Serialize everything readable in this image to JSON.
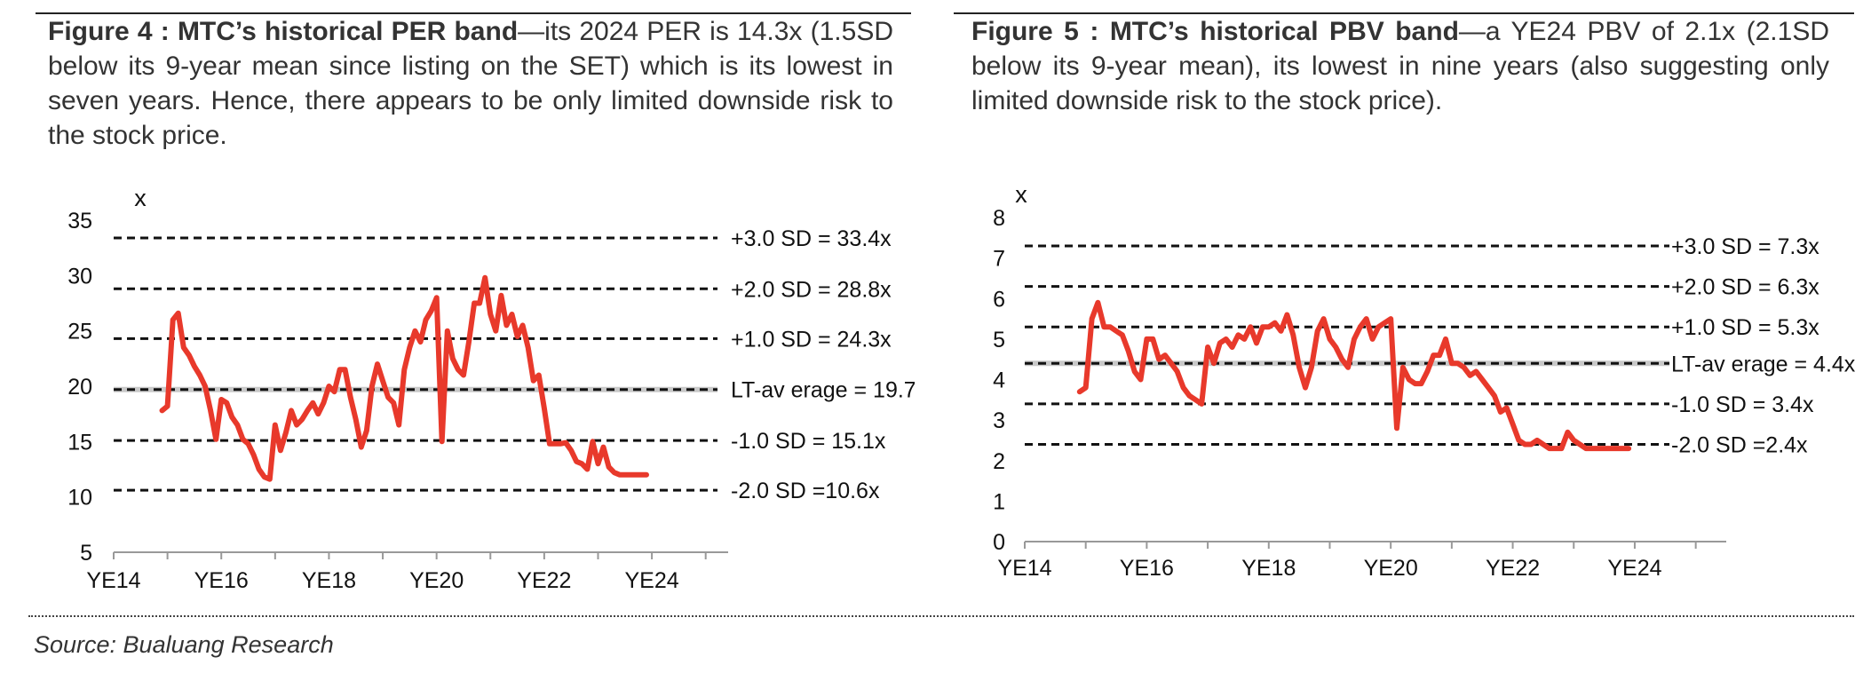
{
  "figures": [
    {
      "caption_title": "Figure 4 : MTC’s historical PER band",
      "caption_text": "—its 2024 PER is 14.3x (1.5SD below its 9-year mean since listing on the SET) which is its lowest in seven years. Hence, there appears to be only limited downside risk to the stock price."
    },
    {
      "caption_title": "Figure 5 : MTC’s historical PBV band",
      "caption_text": "—a YE24 PBV of 2.1x (2.1SD below its 9-year mean), its lowest in nine years (also suggesting only limited downside risk to the stock price)."
    }
  ],
  "source": "Source: Bualuang Research",
  "colors": {
    "series": "#e8392b",
    "bands": "#111111",
    "lt_average": "#c8c8c8",
    "text": "#333333"
  },
  "chart_data": [
    {
      "type": "line",
      "title": "",
      "ylabel": "x",
      "ylim": [
        5,
        35
      ],
      "yticks": [
        5,
        10,
        15,
        20,
        25,
        30,
        35
      ],
      "xlim": [
        2014,
        2025.5
      ],
      "xticks": [
        {
          "value": 2014,
          "label": "YE14"
        },
        {
          "value": 2016,
          "label": "YE16"
        },
        {
          "value": 2018,
          "label": "YE18"
        },
        {
          "value": 2020,
          "label": "YE20"
        },
        {
          "value": 2022,
          "label": "YE22"
        },
        {
          "value": 2024,
          "label": "YE24"
        }
      ],
      "grid": false,
      "bands": [
        {
          "label": "+3.0 SD = 33.4x",
          "value": 33.4
        },
        {
          "label": "+2.0 SD = 28.8x",
          "value": 28.8
        },
        {
          "label": "+1.0 SD = 24.3x",
          "value": 24.3
        },
        {
          "label": "LT-av erage = 19.7x",
          "value": 19.7,
          "is_average": true
        },
        {
          "label": "-1.0 SD = 15.1x",
          "value": 15.1
        },
        {
          "label": "-2.0 SD =10.6x",
          "value": 10.6
        }
      ],
      "series": [
        {
          "x": [
            2014.9,
            2015.0,
            2015.1,
            2015.2,
            2015.3,
            2015.4,
            2015.5,
            2015.6,
            2015.7,
            2015.8,
            2015.9,
            2016.0,
            2016.1,
            2016.2,
            2016.3,
            2016.4,
            2016.5,
            2016.6,
            2016.7,
            2016.8,
            2016.9,
            2017.0,
            2017.1,
            2017.2,
            2017.3,
            2017.4,
            2017.5,
            2017.6,
            2017.7,
            2017.8,
            2017.9,
            2018.0,
            2018.1,
            2018.2,
            2018.3,
            2018.4,
            2018.5,
            2018.6,
            2018.7,
            2018.8,
            2018.9,
            2019.0,
            2019.1,
            2019.2,
            2019.3,
            2019.4,
            2019.5,
            2019.6,
            2019.7,
            2019.8,
            2019.9,
            2020.0,
            2020.1,
            2020.2,
            2020.3,
            2020.4,
            2020.5,
            2020.6,
            2020.7,
            2020.8,
            2020.9,
            2021.0,
            2021.1,
            2021.2,
            2021.3,
            2021.4,
            2021.5,
            2021.6,
            2021.7,
            2021.8,
            2021.9,
            2022.0,
            2022.1,
            2022.2,
            2022.3,
            2022.4,
            2022.5,
            2022.6,
            2022.7,
            2022.8,
            2022.9,
            2023.0,
            2023.1,
            2023.2,
            2023.3,
            2023.4,
            2023.5,
            2023.6,
            2023.7,
            2023.8,
            2023.9
          ],
          "values": [
            17.8,
            18.2,
            26.0,
            26.6,
            23.5,
            22.8,
            21.8,
            21.0,
            20.0,
            17.8,
            15.2,
            18.8,
            18.5,
            17.2,
            16.5,
            15.2,
            14.8,
            13.8,
            12.5,
            11.8,
            11.6,
            16.5,
            14.2,
            15.8,
            17.8,
            16.5,
            17.0,
            17.8,
            18.5,
            17.5,
            18.5,
            20.0,
            19.5,
            21.5,
            21.5,
            19.0,
            17.0,
            14.5,
            16.0,
            20.0,
            22.0,
            20.5,
            19.0,
            18.5,
            16.5,
            21.5,
            23.5,
            25.0,
            24.0,
            26.0,
            26.8,
            28.0,
            15.0,
            25.0,
            22.5,
            21.5,
            21.0,
            24.0,
            27.5,
            27.5,
            29.8,
            26.5,
            25.0,
            28.2,
            25.5,
            26.5,
            24.5,
            25.5,
            23.5,
            20.5,
            21.0,
            18.0,
            14.8,
            14.8,
            14.8,
            14.9,
            14.2,
            13.2,
            13.0,
            12.5,
            15.0,
            13.0,
            14.5,
            12.7,
            12.2,
            12.0,
            12.0,
            12.0,
            12.0,
            12.0,
            12.0
          ]
        }
      ]
    },
    {
      "type": "line",
      "title": "",
      "ylabel": "x",
      "ylim": [
        0,
        8
      ],
      "yticks": [
        0,
        1,
        2,
        3,
        4,
        5,
        6,
        7,
        8
      ],
      "xlim": [
        2014,
        2025.5
      ],
      "xticks": [
        {
          "value": 2014,
          "label": "YE14"
        },
        {
          "value": 2016,
          "label": "YE16"
        },
        {
          "value": 2018,
          "label": "YE18"
        },
        {
          "value": 2020,
          "label": "YE20"
        },
        {
          "value": 2022,
          "label": "YE22"
        },
        {
          "value": 2024,
          "label": "YE24"
        }
      ],
      "grid": false,
      "bands": [
        {
          "label": "+3.0 SD = 7.3x",
          "value": 7.3
        },
        {
          "label": "+2.0 SD = 6.3x",
          "value": 6.3
        },
        {
          "label": "+1.0 SD = 5.3x",
          "value": 5.3
        },
        {
          "label": "LT-av erage = 4.4x",
          "value": 4.4,
          "is_average": true
        },
        {
          "label": "-1.0 SD = 3.4x",
          "value": 3.4
        },
        {
          "label": "-2.0 SD =2.4x",
          "value": 2.4
        }
      ],
      "series": [
        {
          "x": [
            2014.9,
            2015.0,
            2015.1,
            2015.2,
            2015.3,
            2015.4,
            2015.5,
            2015.6,
            2015.7,
            2015.8,
            2015.9,
            2016.0,
            2016.1,
            2016.2,
            2016.3,
            2016.4,
            2016.5,
            2016.6,
            2016.7,
            2016.8,
            2016.9,
            2017.0,
            2017.1,
            2017.2,
            2017.3,
            2017.4,
            2017.5,
            2017.6,
            2017.7,
            2017.8,
            2017.9,
            2018.0,
            2018.1,
            2018.2,
            2018.3,
            2018.4,
            2018.5,
            2018.6,
            2018.7,
            2018.8,
            2018.9,
            2019.0,
            2019.1,
            2019.2,
            2019.3,
            2019.4,
            2019.5,
            2019.6,
            2019.7,
            2019.8,
            2019.9,
            2020.0,
            2020.1,
            2020.2,
            2020.3,
            2020.4,
            2020.5,
            2020.6,
            2020.7,
            2020.8,
            2020.9,
            2021.0,
            2021.1,
            2021.2,
            2021.3,
            2021.4,
            2021.5,
            2021.6,
            2021.7,
            2021.8,
            2021.9,
            2022.0,
            2022.1,
            2022.2,
            2022.3,
            2022.4,
            2022.5,
            2022.6,
            2022.7,
            2022.8,
            2022.9,
            2023.0,
            2023.1,
            2023.2,
            2023.3,
            2023.4,
            2023.5,
            2023.6,
            2023.7,
            2023.8,
            2023.9
          ],
          "values": [
            3.7,
            3.8,
            5.5,
            5.9,
            5.3,
            5.3,
            5.2,
            5.1,
            4.7,
            4.2,
            4.0,
            5.0,
            5.0,
            4.5,
            4.6,
            4.4,
            4.2,
            3.8,
            3.6,
            3.5,
            3.4,
            4.8,
            4.4,
            4.9,
            5.0,
            4.8,
            5.1,
            5.0,
            5.3,
            4.9,
            5.3,
            5.3,
            5.4,
            5.2,
            5.6,
            5.1,
            4.3,
            3.8,
            4.3,
            5.2,
            5.5,
            5.0,
            4.8,
            4.5,
            4.3,
            5.0,
            5.3,
            5.5,
            5.0,
            5.3,
            5.4,
            5.5,
            2.8,
            4.3,
            4.0,
            3.9,
            3.9,
            4.2,
            4.6,
            4.6,
            5.0,
            4.4,
            4.4,
            4.3,
            4.1,
            4.2,
            4.0,
            3.8,
            3.6,
            3.2,
            3.3,
            2.9,
            2.5,
            2.4,
            2.4,
            2.5,
            2.4,
            2.3,
            2.3,
            2.3,
            2.7,
            2.5,
            2.4,
            2.3,
            2.3,
            2.3,
            2.3,
            2.3,
            2.3,
            2.3,
            2.3
          ]
        }
      ]
    }
  ]
}
